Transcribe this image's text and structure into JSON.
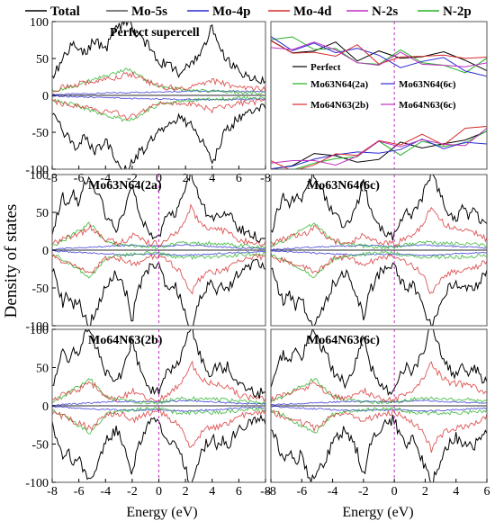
{
  "chart_data": {
    "type": "line",
    "ylabel": "Density of states",
    "xlabel": "Energy (eV)",
    "fermi_level": 0,
    "legend": [
      {
        "label": "Total",
        "color": "#000000"
      },
      {
        "label": "Mo-5s",
        "color": "#555555"
      },
      {
        "label": "Mo-4p",
        "color": "#2a2ad4"
      },
      {
        "label": "Mo-4d",
        "color": "#d42a2a"
      },
      {
        "label": "N-2s",
        "color": "#c22fc2"
      },
      {
        "label": "N-2p",
        "color": "#22b022"
      }
    ],
    "panels": [
      {
        "id": "perfect",
        "title": "Perfect supercell",
        "xlim": [
          -8,
          0
        ],
        "ylim": [
          -100,
          100
        ],
        "yticks": [
          -100,
          -50,
          0,
          50,
          100
        ],
        "xticks": [
          -8,
          -6,
          -4,
          -2,
          0,
          2,
          4,
          6,
          -8
        ],
        "fermi": 0
      },
      {
        "id": "zoom",
        "title": "",
        "xlim": [
          -8,
          6
        ],
        "ylim": [
          -100,
          100
        ],
        "legend_entries": [
          "Perfect",
          "Mo63N64(2a)",
          "Mo63N64(6c)",
          "Mo64N63(2b)",
          "Mo64N63(6c)"
        ],
        "fermi": 0
      },
      {
        "id": "mo63_2a",
        "title": "Mo63N64(2a)",
        "xlim": [
          -8,
          8
        ],
        "ylim": [
          -100,
          100
        ],
        "yticks": [
          -100,
          -50,
          0,
          50,
          100
        ]
      },
      {
        "id": "mo63_6c",
        "title": "Mo63N64(6c)",
        "xlim": [
          -8,
          6
        ],
        "ylim": [
          -100,
          100
        ]
      },
      {
        "id": "mo64_2b",
        "title": "Mo64N63(2b)",
        "xlim": [
          -8,
          8
        ],
        "ylim": [
          -100,
          100
        ],
        "yticks": [
          -100,
          -50,
          0,
          50,
          100
        ],
        "xticks": [
          -8,
          -6,
          -4,
          -2,
          0,
          2,
          4,
          6,
          -8
        ]
      },
      {
        "id": "mo64_6c",
        "title": "Mo64N63(6c)",
        "xlim": [
          -8,
          6
        ],
        "ylim": [
          -100,
          100
        ],
        "xticks": [
          -8,
          -6,
          -4,
          -2,
          0,
          2,
          4,
          6
        ]
      }
    ],
    "envelope": {
      "total_up": [
        [
          -8,
          25
        ],
        [
          -7.6,
          48
        ],
        [
          -7.2,
          70
        ],
        [
          -6.8,
          58
        ],
        [
          -6.4,
          75
        ],
        [
          -6,
          62
        ],
        [
          -5.6,
          90
        ],
        [
          -5.2,
          100
        ],
        [
          -4.8,
          80
        ],
        [
          -4.4,
          68
        ],
        [
          -4,
          46
        ],
        [
          -3.6,
          40
        ],
        [
          -3.2,
          30
        ],
        [
          -2.8,
          42
        ],
        [
          -2.4,
          60
        ],
        [
          -2,
          92
        ],
        [
          -1.6,
          55
        ],
        [
          -1.2,
          38
        ],
        [
          -0.8,
          26
        ],
        [
          -0.4,
          20
        ],
        [
          0,
          18
        ],
        [
          0.4,
          42
        ],
        [
          0.8,
          50
        ],
        [
          1.2,
          45
        ],
        [
          1.6,
          62
        ],
        [
          2,
          80
        ],
        [
          2.4,
          105
        ],
        [
          2.8,
          82
        ],
        [
          3.2,
          60
        ],
        [
          3.6,
          48
        ],
        [
          4,
          40
        ],
        [
          4.4,
          54
        ],
        [
          4.8,
          45
        ],
        [
          5.2,
          52
        ],
        [
          5.6,
          38
        ],
        [
          6,
          30
        ],
        [
          6.4,
          25
        ],
        [
          6.8,
          22
        ],
        [
          7.2,
          18
        ],
        [
          7.6,
          16
        ],
        [
          8,
          20
        ]
      ],
      "mo4d_up": [
        [
          -8,
          8
        ],
        [
          -7.2,
          14
        ],
        [
          -6.4,
          20
        ],
        [
          -5.6,
          24
        ],
        [
          -5.2,
          30
        ],
        [
          -4.8,
          26
        ],
        [
          -4.4,
          18
        ],
        [
          -4,
          12
        ],
        [
          -3.2,
          10
        ],
        [
          -2.4,
          14
        ],
        [
          -2,
          20
        ],
        [
          -1.6,
          16
        ],
        [
          -0.8,
          10
        ],
        [
          0,
          8
        ],
        [
          0.8,
          16
        ],
        [
          1.6,
          28
        ],
        [
          2,
          40
        ],
        [
          2.4,
          58
        ],
        [
          2.8,
          44
        ],
        [
          3.2,
          36
        ],
        [
          3.6,
          30
        ],
        [
          4.4,
          28
        ],
        [
          5.2,
          24
        ],
        [
          6,
          14
        ],
        [
          7,
          10
        ],
        [
          8,
          8
        ]
      ],
      "n2p_up": [
        [
          -8,
          6
        ],
        [
          -7.2,
          12
        ],
        [
          -6.4,
          22
        ],
        [
          -5.6,
          30
        ],
        [
          -5.2,
          36
        ],
        [
          -4.8,
          28
        ],
        [
          -4.4,
          20
        ],
        [
          -4,
          12
        ],
        [
          -3.2,
          8
        ],
        [
          -2.4,
          6
        ],
        [
          -1.6,
          5
        ],
        [
          -0.8,
          4
        ],
        [
          0,
          4
        ],
        [
          1,
          8
        ],
        [
          2,
          10
        ],
        [
          3,
          9
        ],
        [
          4,
          9
        ],
        [
          5,
          8
        ],
        [
          6,
          6
        ],
        [
          7,
          5
        ],
        [
          8,
          4
        ]
      ],
      "mo4p_up": [
        [
          -8,
          1
        ],
        [
          -6,
          3
        ],
        [
          -4,
          5
        ],
        [
          -2,
          6
        ],
        [
          0,
          5
        ],
        [
          2,
          7
        ],
        [
          4,
          5
        ],
        [
          6,
          3
        ],
        [
          8,
          2
        ]
      ]
    }
  }
}
